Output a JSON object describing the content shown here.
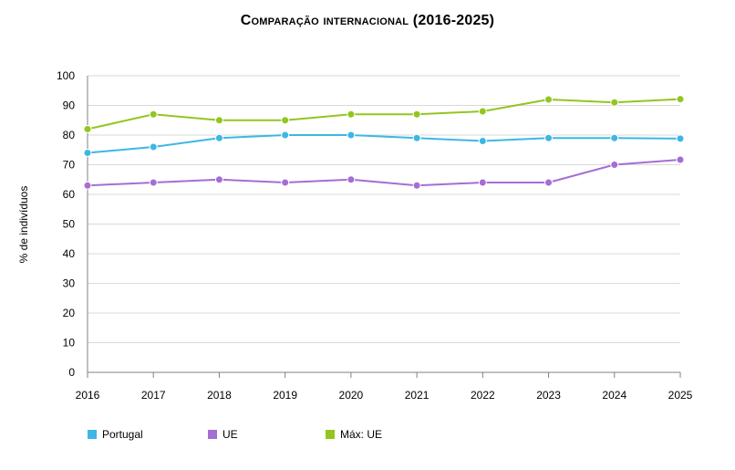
{
  "chart_data": {
    "type": "line",
    "title": "Comparação internacional (2016-2025)",
    "xlabel": "",
    "ylabel": "% de indivíduos",
    "x": [
      "2016",
      "2017",
      "2018",
      "2019",
      "2020",
      "2021",
      "2022",
      "2023",
      "2024",
      "2025"
    ],
    "ylim": [
      0,
      100
    ],
    "yticks": [
      0,
      10,
      20,
      30,
      40,
      50,
      60,
      70,
      80,
      90,
      100
    ],
    "grid": true,
    "legend_position": "bottom",
    "series": [
      {
        "name": "Portugal",
        "color": "#3db7e4",
        "values": [
          74,
          76,
          79,
          80,
          80,
          79,
          78,
          79,
          79,
          78.8
        ]
      },
      {
        "name": "UE",
        "color": "#a66dd4",
        "values": [
          63,
          64,
          65,
          64,
          65,
          63,
          64,
          64,
          70,
          71.7
        ]
      },
      {
        "name": "Máx: UE",
        "color": "#92c620",
        "values": [
          82,
          87,
          85,
          85,
          87,
          87,
          88,
          92,
          91,
          92.1
        ]
      }
    ]
  }
}
